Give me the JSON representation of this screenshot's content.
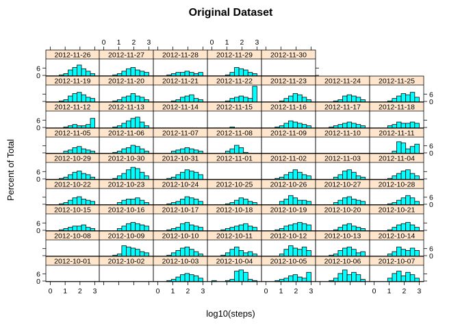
{
  "chart_data": {
    "type": "bar",
    "title": "Original Dataset",
    "xlabel": "log10(steps)",
    "ylabel": "Percent of Total",
    "xlim": [
      -0.3,
      3.3
    ],
    "ylim": [
      0,
      14
    ],
    "x_ticks": [
      "0",
      "1",
      "2",
      "3"
    ],
    "y_ticks": [
      "0",
      "6"
    ],
    "bin_width": 0.3,
    "bin_starts": [
      0,
      0.3,
      0.6,
      0.9,
      1.2,
      1.5,
      1.8,
      2.1,
      2.4,
      2.7,
      3.0
    ],
    "colors": {
      "bar_fill": "#00ffff",
      "strip_fill": "#ffe5cc",
      "frame": "#000000"
    },
    "panels": [
      {
        "label": "2012-10-01",
        "values": [
          0,
          0,
          0,
          0,
          0,
          0,
          0,
          0,
          0,
          0,
          0
        ]
      },
      {
        "label": "2012-10-02",
        "values": [
          0,
          0,
          0,
          0,
          0,
          0,
          0,
          0,
          0,
          0,
          0
        ]
      },
      {
        "label": "2012-10-03",
        "values": [
          0,
          0,
          1,
          2,
          4,
          6,
          7,
          6,
          5,
          3,
          0
        ]
      },
      {
        "label": "2012-10-04",
        "values": [
          1,
          0,
          0,
          1,
          2,
          9,
          10,
          8,
          2,
          1,
          0
        ]
      },
      {
        "label": "2012-10-05",
        "values": [
          0,
          0,
          1,
          2,
          3,
          5,
          6,
          4,
          3,
          8,
          0
        ]
      },
      {
        "label": "2012-10-06",
        "values": [
          0,
          0,
          1,
          3,
          7,
          10,
          6,
          8,
          6,
          2,
          0
        ]
      },
      {
        "label": "2012-10-07",
        "values": [
          0,
          0,
          0,
          3,
          7,
          9,
          5,
          8,
          6,
          3,
          0
        ]
      },
      {
        "label": "2012-10-08",
        "values": [
          0,
          0,
          0,
          0,
          0,
          0,
          0,
          0,
          0,
          0,
          0
        ]
      },
      {
        "label": "2012-10-09",
        "values": [
          0,
          0,
          1,
          2,
          9,
          8,
          7,
          6,
          4,
          3,
          0
        ]
      },
      {
        "label": "2012-10-10",
        "values": [
          0,
          0,
          1,
          3,
          5,
          7,
          8,
          6,
          4,
          2,
          0
        ]
      },
      {
        "label": "2012-10-11",
        "values": [
          0,
          0,
          1,
          3,
          6,
          8,
          5,
          3,
          4,
          2,
          0
        ]
      },
      {
        "label": "2012-10-12",
        "values": [
          0,
          0,
          0,
          2,
          6,
          9,
          7,
          6,
          8,
          5,
          0
        ]
      },
      {
        "label": "2012-10-13",
        "values": [
          0,
          0,
          1,
          2,
          5,
          7,
          8,
          6,
          3,
          4,
          0
        ]
      },
      {
        "label": "2012-10-14",
        "values": [
          0,
          0,
          0,
          2,
          4,
          8,
          6,
          5,
          7,
          5,
          0
        ]
      },
      {
        "label": "2012-10-15",
        "values": [
          0,
          0,
          1,
          2,
          3,
          4,
          4,
          5,
          3,
          2,
          0
        ]
      },
      {
        "label": "2012-10-16",
        "values": [
          0,
          0,
          0,
          2,
          4,
          6,
          7,
          6,
          5,
          4,
          0
        ]
      },
      {
        "label": "2012-10-17",
        "values": [
          0,
          0,
          1,
          2,
          3,
          6,
          7,
          5,
          4,
          3,
          0
        ]
      },
      {
        "label": "2012-10-18",
        "values": [
          0,
          0,
          1,
          2,
          3,
          4,
          5,
          6,
          4,
          3,
          0
        ]
      },
      {
        "label": "2012-10-19",
        "values": [
          0,
          0,
          1,
          2,
          4,
          5,
          6,
          7,
          6,
          5,
          0
        ]
      },
      {
        "label": "2012-10-20",
        "values": [
          0,
          0,
          0,
          1,
          3,
          5,
          6,
          4,
          3,
          2,
          0
        ]
      },
      {
        "label": "2012-10-21",
        "values": [
          0,
          0,
          0,
          1,
          3,
          5,
          6,
          7,
          5,
          3,
          0
        ]
      },
      {
        "label": "2012-10-22",
        "values": [
          0,
          0,
          1,
          2,
          4,
          6,
          7,
          5,
          4,
          3,
          0
        ]
      },
      {
        "label": "2012-10-23",
        "values": [
          0,
          0,
          0,
          2,
          4,
          5,
          5,
          6,
          4,
          2,
          0
        ]
      },
      {
        "label": "2012-10-24",
        "values": [
          0,
          0,
          1,
          2,
          3,
          5,
          7,
          6,
          5,
          3,
          0
        ]
      },
      {
        "label": "2012-10-25",
        "values": [
          0,
          0,
          0,
          1,
          2,
          4,
          6,
          5,
          3,
          2,
          0
        ]
      },
      {
        "label": "2012-10-26",
        "values": [
          0,
          0,
          0,
          3,
          5,
          8,
          6,
          4,
          4,
          3,
          0
        ]
      },
      {
        "label": "2012-10-27",
        "values": [
          0,
          0,
          0,
          2,
          4,
          6,
          7,
          5,
          4,
          3,
          0
        ]
      },
      {
        "label": "2012-10-28",
        "values": [
          0,
          0,
          0,
          1,
          2,
          4,
          6,
          8,
          6,
          3,
          0
        ]
      },
      {
        "label": "2012-10-29",
        "values": [
          0,
          0,
          1,
          2,
          4,
          6,
          7,
          5,
          4,
          2,
          0
        ]
      },
      {
        "label": "2012-10-30",
        "values": [
          0,
          0,
          1,
          3,
          5,
          8,
          10,
          9,
          6,
          3,
          0
        ]
      },
      {
        "label": "2012-10-31",
        "values": [
          0,
          0,
          1,
          2,
          4,
          6,
          8,
          7,
          6,
          4,
          0
        ]
      },
      {
        "label": "2012-11-01",
        "values": [
          0,
          0,
          0,
          0,
          0,
          0,
          0,
          0,
          0,
          0,
          0
        ]
      },
      {
        "label": "2012-11-02",
        "values": [
          0,
          0,
          1,
          2,
          4,
          6,
          8,
          6,
          4,
          3,
          0
        ]
      },
      {
        "label": "2012-11-03",
        "values": [
          0,
          0,
          0,
          2,
          4,
          7,
          8,
          6,
          3,
          2,
          0
        ]
      },
      {
        "label": "2012-11-04",
        "values": [
          0,
          0,
          0,
          1,
          3,
          5,
          7,
          8,
          5,
          3,
          0
        ]
      },
      {
        "label": "2012-11-05",
        "values": [
          0,
          0,
          0,
          2,
          3,
          5,
          6,
          4,
          3,
          2,
          0
        ]
      },
      {
        "label": "2012-11-06",
        "values": [
          0,
          0,
          1,
          2,
          4,
          5,
          7,
          6,
          4,
          2,
          0
        ]
      },
      {
        "label": "2012-11-07",
        "values": [
          0,
          0,
          0,
          2,
          3,
          4,
          5,
          4,
          3,
          2,
          0
        ]
      },
      {
        "label": "2012-11-08",
        "values": [
          0,
          0,
          0,
          2,
          4,
          7,
          5,
          1,
          0,
          0,
          0
        ]
      },
      {
        "label": "2012-11-09",
        "values": [
          0,
          0,
          0,
          0,
          0,
          0,
          0,
          0,
          0,
          0,
          0
        ]
      },
      {
        "label": "2012-11-10",
        "values": [
          0,
          0,
          0,
          0,
          0,
          0,
          0,
          0,
          0,
          0,
          0
        ]
      },
      {
        "label": "2012-11-11",
        "values": [
          0,
          0,
          0,
          0,
          2,
          10,
          9,
          4,
          6,
          8,
          0
        ]
      },
      {
        "label": "2012-11-12",
        "values": [
          0,
          0,
          0,
          1,
          2,
          3,
          2,
          2,
          3,
          8,
          0
        ]
      },
      {
        "label": "2012-11-13",
        "values": [
          0,
          0,
          1,
          2,
          4,
          6,
          8,
          9,
          5,
          2,
          0
        ]
      },
      {
        "label": "2012-11-14",
        "values": [
          0,
          0,
          0,
          0,
          0,
          0,
          0,
          0,
          0,
          0,
          0
        ]
      },
      {
        "label": "2012-11-15",
        "values": [
          0,
          0,
          0,
          0,
          1,
          0,
          0,
          0,
          0,
          0,
          0
        ]
      },
      {
        "label": "2012-11-16",
        "values": [
          0,
          0,
          1,
          2,
          4,
          6,
          5,
          4,
          3,
          2,
          0
        ]
      },
      {
        "label": "2012-11-17",
        "values": [
          0,
          0,
          1,
          2,
          3,
          4,
          5,
          4,
          3,
          2,
          0
        ]
      },
      {
        "label": "2012-11-18",
        "values": [
          0,
          0,
          0,
          2,
          3,
          5,
          4,
          4,
          5,
          4,
          0
        ]
      },
      {
        "label": "2012-11-19",
        "values": [
          0,
          0,
          1,
          2,
          5,
          7,
          8,
          6,
          4,
          3,
          0
        ]
      },
      {
        "label": "2012-11-20",
        "values": [
          0,
          0,
          1,
          2,
          4,
          5,
          7,
          5,
          4,
          2,
          0
        ]
      },
      {
        "label": "2012-11-21",
        "values": [
          0,
          0,
          0,
          1,
          2,
          4,
          5,
          6,
          3,
          2,
          0
        ]
      },
      {
        "label": "2012-11-22",
        "values": [
          0,
          0,
          0,
          1,
          3,
          4,
          5,
          4,
          3,
          13,
          0
        ]
      },
      {
        "label": "2012-11-23",
        "values": [
          0,
          0,
          0,
          1,
          3,
          5,
          7,
          6,
          4,
          2,
          0
        ]
      },
      {
        "label": "2012-11-24",
        "values": [
          0,
          0,
          0,
          1,
          2,
          5,
          6,
          5,
          4,
          2,
          0
        ]
      },
      {
        "label": "2012-11-25",
        "values": [
          0,
          0,
          0,
          1,
          3,
          5,
          7,
          6,
          8,
          4,
          0
        ]
      },
      {
        "label": "2012-11-26",
        "values": [
          0,
          0,
          1,
          2,
          5,
          7,
          9,
          6,
          4,
          2,
          0
        ]
      },
      {
        "label": "2012-11-27",
        "values": [
          0,
          0,
          1,
          2,
          4,
          6,
          7,
          5,
          4,
          3,
          0
        ]
      },
      {
        "label": "2012-11-28",
        "values": [
          0,
          0,
          1,
          2,
          3,
          3,
          4,
          3,
          2,
          3,
          0
        ]
      },
      {
        "label": "2012-11-29",
        "values": [
          0,
          0,
          0,
          1,
          3,
          7,
          6,
          5,
          3,
          2,
          0
        ]
      },
      {
        "label": "2012-11-30",
        "values": [
          0,
          0,
          0,
          0,
          0,
          0,
          0,
          0,
          0,
          0,
          0
        ]
      }
    ]
  }
}
